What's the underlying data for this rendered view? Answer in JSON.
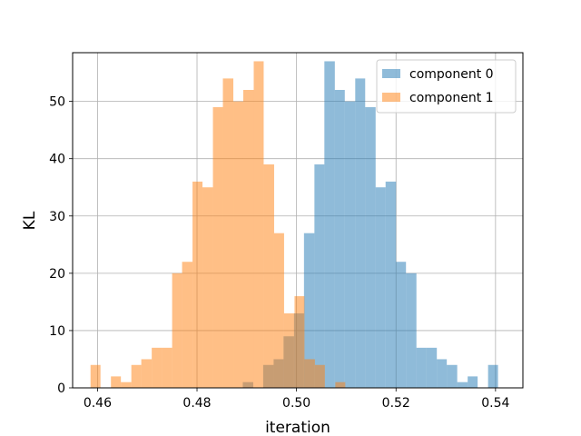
{
  "chart_data": {
    "type": "histogram",
    "xlabel": "iteration",
    "ylabel": "KL",
    "xlim": [
      0.455,
      0.5455
    ],
    "ylim": [
      0,
      58.5
    ],
    "grid": true,
    "legend_position": "top-right",
    "x_ticks": [
      0.46,
      0.48,
      0.5,
      0.52,
      0.54
    ],
    "x_tick_labels": [
      "0.46",
      "0.48",
      "0.50",
      "0.52",
      "0.54"
    ],
    "y_ticks": [
      0,
      10,
      20,
      30,
      40,
      50
    ],
    "y_tick_labels": [
      "0",
      "10",
      "20",
      "30",
      "40",
      "50"
    ],
    "series": [
      {
        "name": "component 0",
        "color": "#1f77b4",
        "alpha": 0.5,
        "bins": [
          [
            0.4892,
            0.4913,
            1
          ],
          [
            0.4933,
            0.4954,
            4
          ],
          [
            0.4954,
            0.4974,
            5
          ],
          [
            0.4974,
            0.4995,
            9
          ],
          [
            0.4995,
            0.5015,
            13
          ],
          [
            0.5015,
            0.5036,
            27
          ],
          [
            0.5036,
            0.5056,
            39
          ],
          [
            0.5056,
            0.5077,
            57
          ],
          [
            0.5077,
            0.5097,
            52
          ],
          [
            0.5097,
            0.5118,
            50
          ],
          [
            0.5118,
            0.5138,
            54
          ],
          [
            0.5138,
            0.5159,
            49
          ],
          [
            0.5159,
            0.5179,
            35
          ],
          [
            0.5179,
            0.52,
            36
          ],
          [
            0.52,
            0.522,
            22
          ],
          [
            0.522,
            0.5241,
            20
          ],
          [
            0.5241,
            0.5261,
            7
          ],
          [
            0.5261,
            0.5282,
            7
          ],
          [
            0.5282,
            0.5302,
            5
          ],
          [
            0.5302,
            0.5323,
            4
          ],
          [
            0.5323,
            0.5344,
            1
          ],
          [
            0.5344,
            0.5364,
            2
          ],
          [
            0.5385,
            0.5405,
            4
          ]
        ]
      },
      {
        "name": "component 1",
        "color": "#ff7f0e",
        "alpha": 0.5,
        "bins": [
          [
            0.4586,
            0.4606,
            4
          ],
          [
            0.4627,
            0.4647,
            2
          ],
          [
            0.4647,
            0.4668,
            1
          ],
          [
            0.4668,
            0.4688,
            4
          ],
          [
            0.4688,
            0.4709,
            5
          ],
          [
            0.4709,
            0.4729,
            7
          ],
          [
            0.4729,
            0.475,
            7
          ],
          [
            0.475,
            0.477,
            20
          ],
          [
            0.477,
            0.4791,
            22
          ],
          [
            0.4791,
            0.4811,
            36
          ],
          [
            0.4811,
            0.4832,
            35
          ],
          [
            0.4832,
            0.4852,
            49
          ],
          [
            0.4852,
            0.4873,
            54
          ],
          [
            0.4873,
            0.4893,
            50
          ],
          [
            0.4893,
            0.4914,
            52
          ],
          [
            0.4914,
            0.4934,
            57
          ],
          [
            0.4934,
            0.4955,
            39
          ],
          [
            0.4955,
            0.4975,
            27
          ],
          [
            0.4975,
            0.4996,
            13
          ],
          [
            0.4996,
            0.5016,
            16
          ],
          [
            0.5016,
            0.5037,
            5
          ],
          [
            0.5037,
            0.5057,
            4
          ],
          [
            0.5078,
            0.5098,
            1
          ]
        ]
      }
    ]
  }
}
